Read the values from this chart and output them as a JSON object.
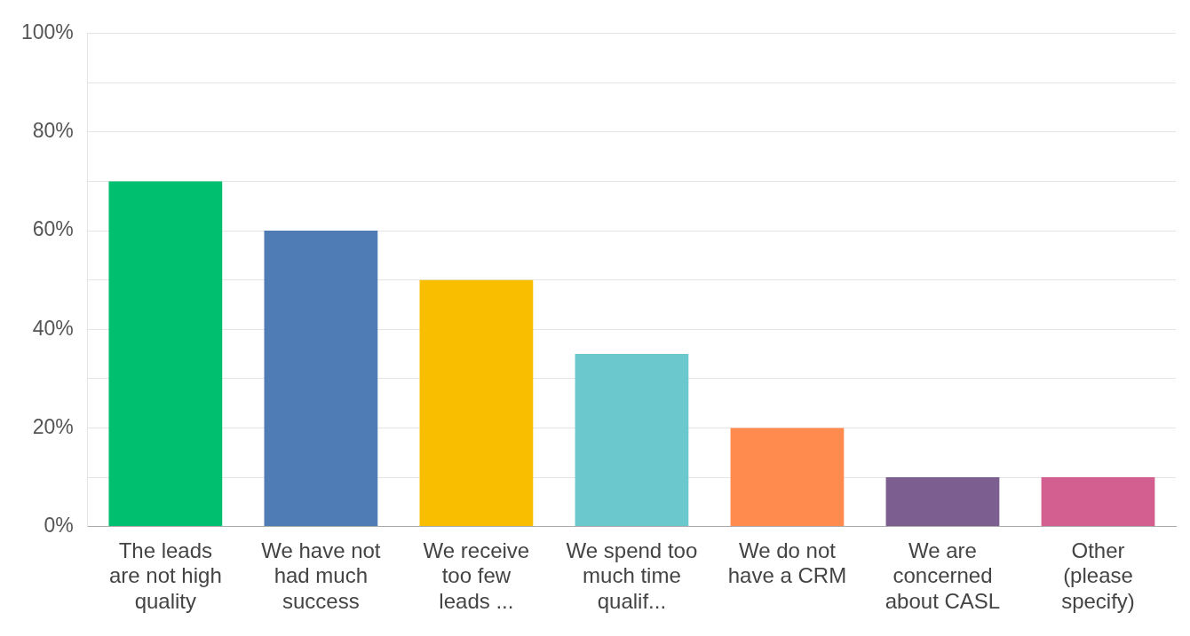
{
  "chart_data": {
    "type": "bar",
    "categories": [
      "The leads are not high quality",
      "We have not had much success",
      "We receive too few leads ...",
      "We spend too much time qualif...",
      "We do not have a CRM",
      "We are concerned about CASL",
      "Other (please specify)"
    ],
    "values": [
      70,
      60,
      50,
      35,
      20,
      10,
      10
    ],
    "colors": [
      "#00bf6f",
      "#507cb6",
      "#f9be00",
      "#6bc8cd",
      "#ff8b4f",
      "#7d5e90",
      "#d25f90"
    ],
    "ylim": [
      0,
      100
    ],
    "yticks": [
      {
        "value": 0,
        "label": "0%"
      },
      {
        "value": 10,
        "label": null
      },
      {
        "value": 20,
        "label": "20%"
      },
      {
        "value": 30,
        "label": null
      },
      {
        "value": 40,
        "label": "40%"
      },
      {
        "value": 50,
        "label": null
      },
      {
        "value": 60,
        "label": "60%"
      },
      {
        "value": 70,
        "label": null
      },
      {
        "value": 80,
        "label": "80%"
      },
      {
        "value": 90,
        "label": null
      },
      {
        "value": 100,
        "label": "100%"
      }
    ],
    "grid": "y",
    "legend": false
  }
}
